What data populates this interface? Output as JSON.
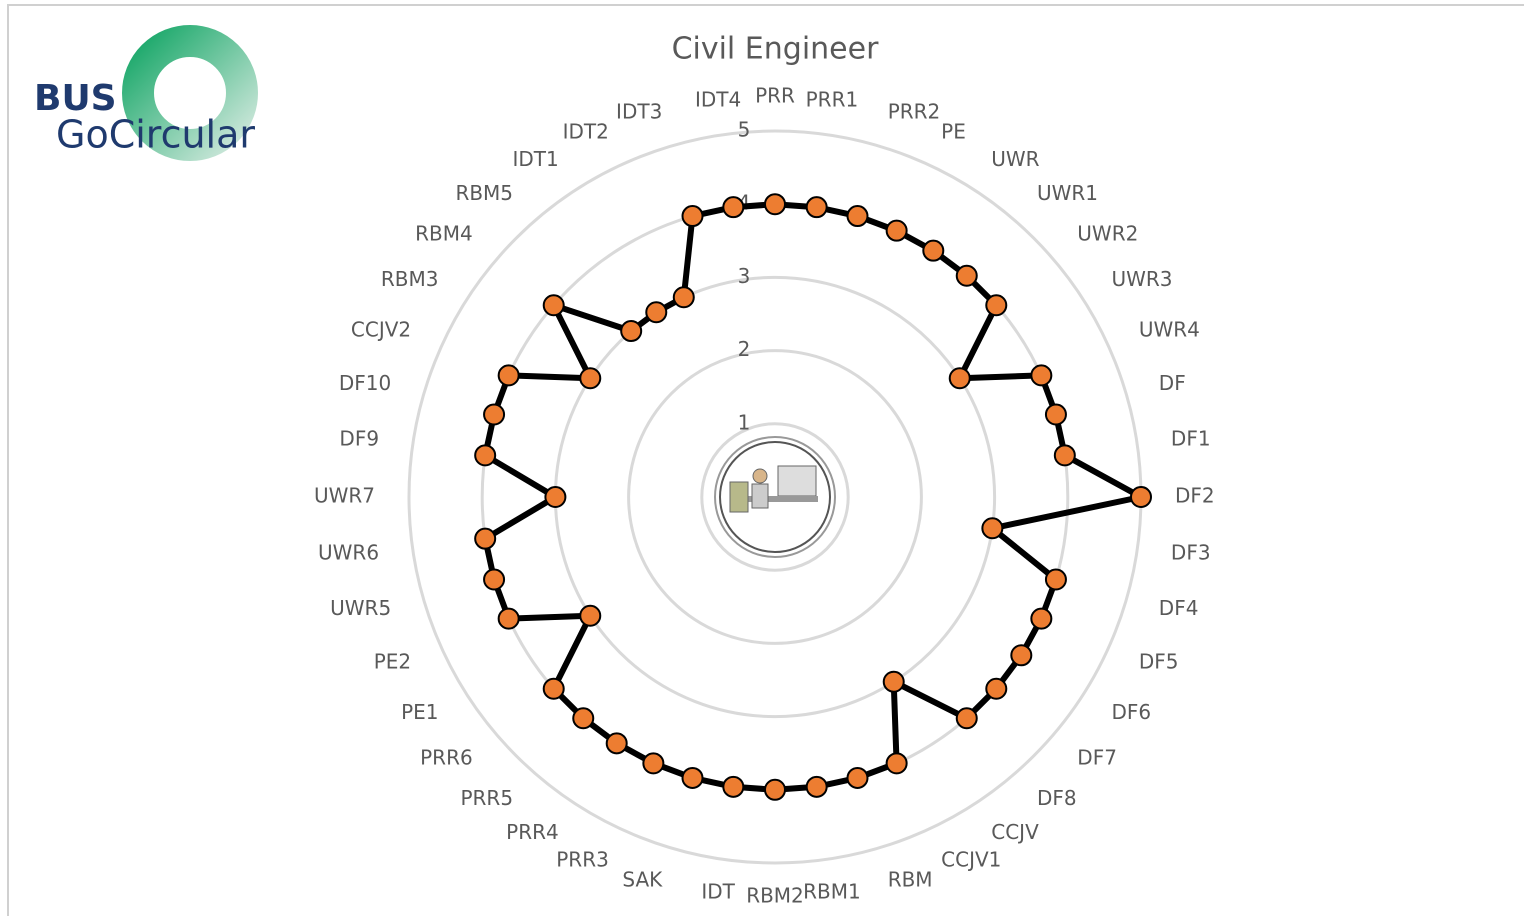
{
  "logo": {
    "line1": "BUS",
    "line2": "GoCircular"
  },
  "chart_data": {
    "type": "radar",
    "title": "Civil Engineer",
    "categories": [
      "PRR",
      "PRR1",
      "PRR2",
      "PE",
      "UWR",
      "UWR1",
      "UWR2",
      "UWR3",
      "UWR4",
      "DF",
      "DF1",
      "DF2",
      "DF3",
      "DF4",
      "DF5",
      "DF6",
      "DF7",
      "DF8",
      "CCJV",
      "CCJV1",
      "RBM",
      "RBM1",
      "RBM2",
      "IDT",
      "SAK",
      "PRR3",
      "PRR4",
      "PRR5",
      "PRR6",
      "PE1",
      "PE2",
      "UWR5",
      "UWR6",
      "UWR7",
      "DF9",
      "DF10",
      "CCJV2",
      "RBM3",
      "RBM4",
      "RBM5",
      "IDT1",
      "IDT2",
      "IDT3",
      "IDT4"
    ],
    "values": [
      4,
      4,
      4,
      4,
      4,
      4,
      4,
      3,
      4,
      4,
      4,
      5,
      3,
      4,
      4,
      4,
      4,
      4,
      3,
      4,
      4,
      4,
      4,
      4,
      4,
      4,
      4,
      4,
      4,
      3,
      4,
      4,
      4,
      3,
      4,
      4,
      4,
      3,
      4,
      3,
      3,
      3,
      4,
      4
    ],
    "color": "#ed7d31",
    "line_color": "#000000",
    "ylim": [
      0,
      5
    ],
    "yticks": [
      1,
      2,
      3,
      4,
      5
    ],
    "grid": true
  }
}
